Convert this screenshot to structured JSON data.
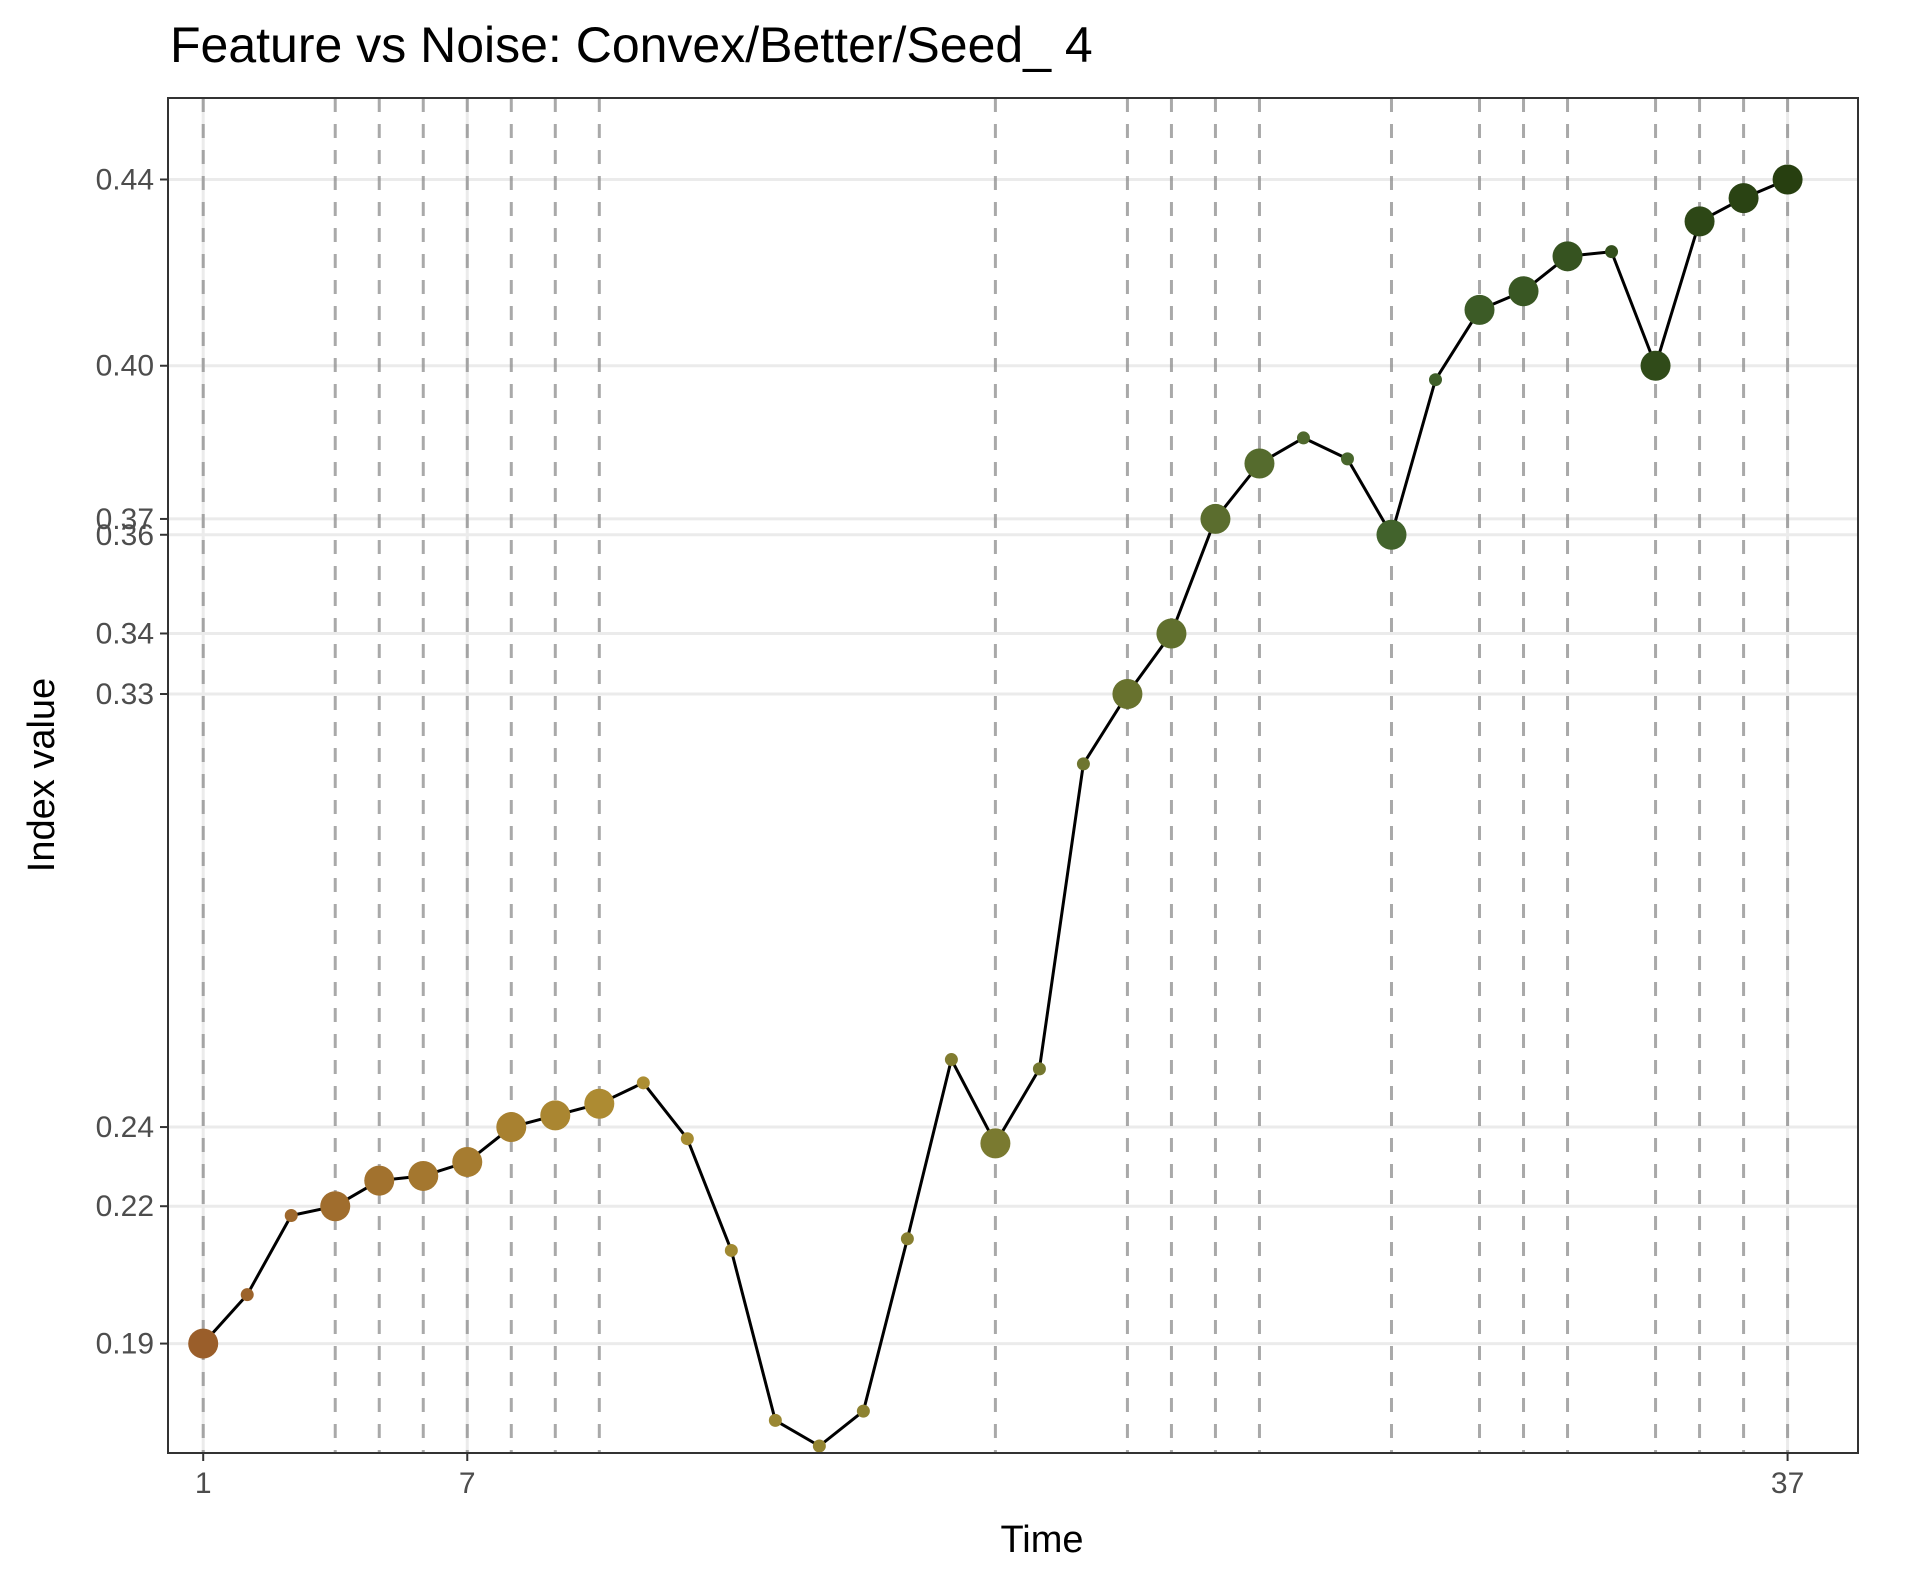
{
  "chart_data": {
    "type": "line",
    "title": "Feature vs Noise: Convex/Better/Seed_ 4",
    "xlabel": "Time",
    "ylabel": "Index value",
    "xlim": [
      0.2,
      38.6
    ],
    "ylim": [
      0.1665,
      0.4575
    ],
    "x_ticks": [
      1,
      7,
      37
    ],
    "x_tick_labels": [
      "1",
      "7",
      "37"
    ],
    "y_ticks": [
      0.19,
      0.2195,
      0.2365,
      0.3295,
      0.3425,
      0.3637,
      0.3671,
      0.4,
      0.44
    ],
    "y_tick_labels": [
      "0.19",
      "0.22",
      "0.24",
      "0.33",
      "0.34",
      "0.36",
      "0.37",
      "0.40",
      "0.44"
    ],
    "grid": "horizontal major lines",
    "vertical_reference_lines": [
      1,
      4,
      5,
      6,
      7,
      8,
      9,
      10,
      19,
      22,
      23,
      24,
      25,
      28,
      30,
      31,
      32,
      34,
      35,
      36,
      37
    ],
    "color_scale": [
      "#9a5e2a",
      "#ae8f33",
      "#42632c",
      "#273f10"
    ],
    "series": [
      {
        "x": [
          1,
          2,
          3,
          4,
          5,
          6,
          7,
          8,
          9,
          10,
          11,
          12,
          13,
          14,
          15,
          16,
          17,
          18,
          19,
          20,
          21,
          22,
          23,
          24,
          25,
          26,
          27,
          28,
          29,
          30,
          31,
          32,
          33,
          34,
          35,
          36,
          37
        ],
        "y": [
          0.19,
          0.2005,
          0.2175,
          0.2195,
          0.225,
          0.226,
          0.229,
          0.2365,
          0.239,
          0.2415,
          0.246,
          0.234,
          0.21,
          0.1735,
          0.168,
          0.1755,
          0.2125,
          0.251,
          0.233,
          0.249,
          0.3145,
          0.3295,
          0.3425,
          0.3671,
          0.379,
          0.3845,
          0.38,
          0.3637,
          0.397,
          0.412,
          0.416,
          0.4235,
          0.4245,
          0.4,
          0.431,
          0.436,
          0.44
        ],
        "highlight": [
          true,
          false,
          false,
          true,
          true,
          true,
          true,
          true,
          true,
          true,
          false,
          false,
          false,
          false,
          false,
          false,
          false,
          false,
          true,
          false,
          false,
          true,
          true,
          true,
          true,
          false,
          false,
          true,
          false,
          true,
          true,
          true,
          false,
          true,
          true,
          true,
          true
        ]
      }
    ]
  }
}
